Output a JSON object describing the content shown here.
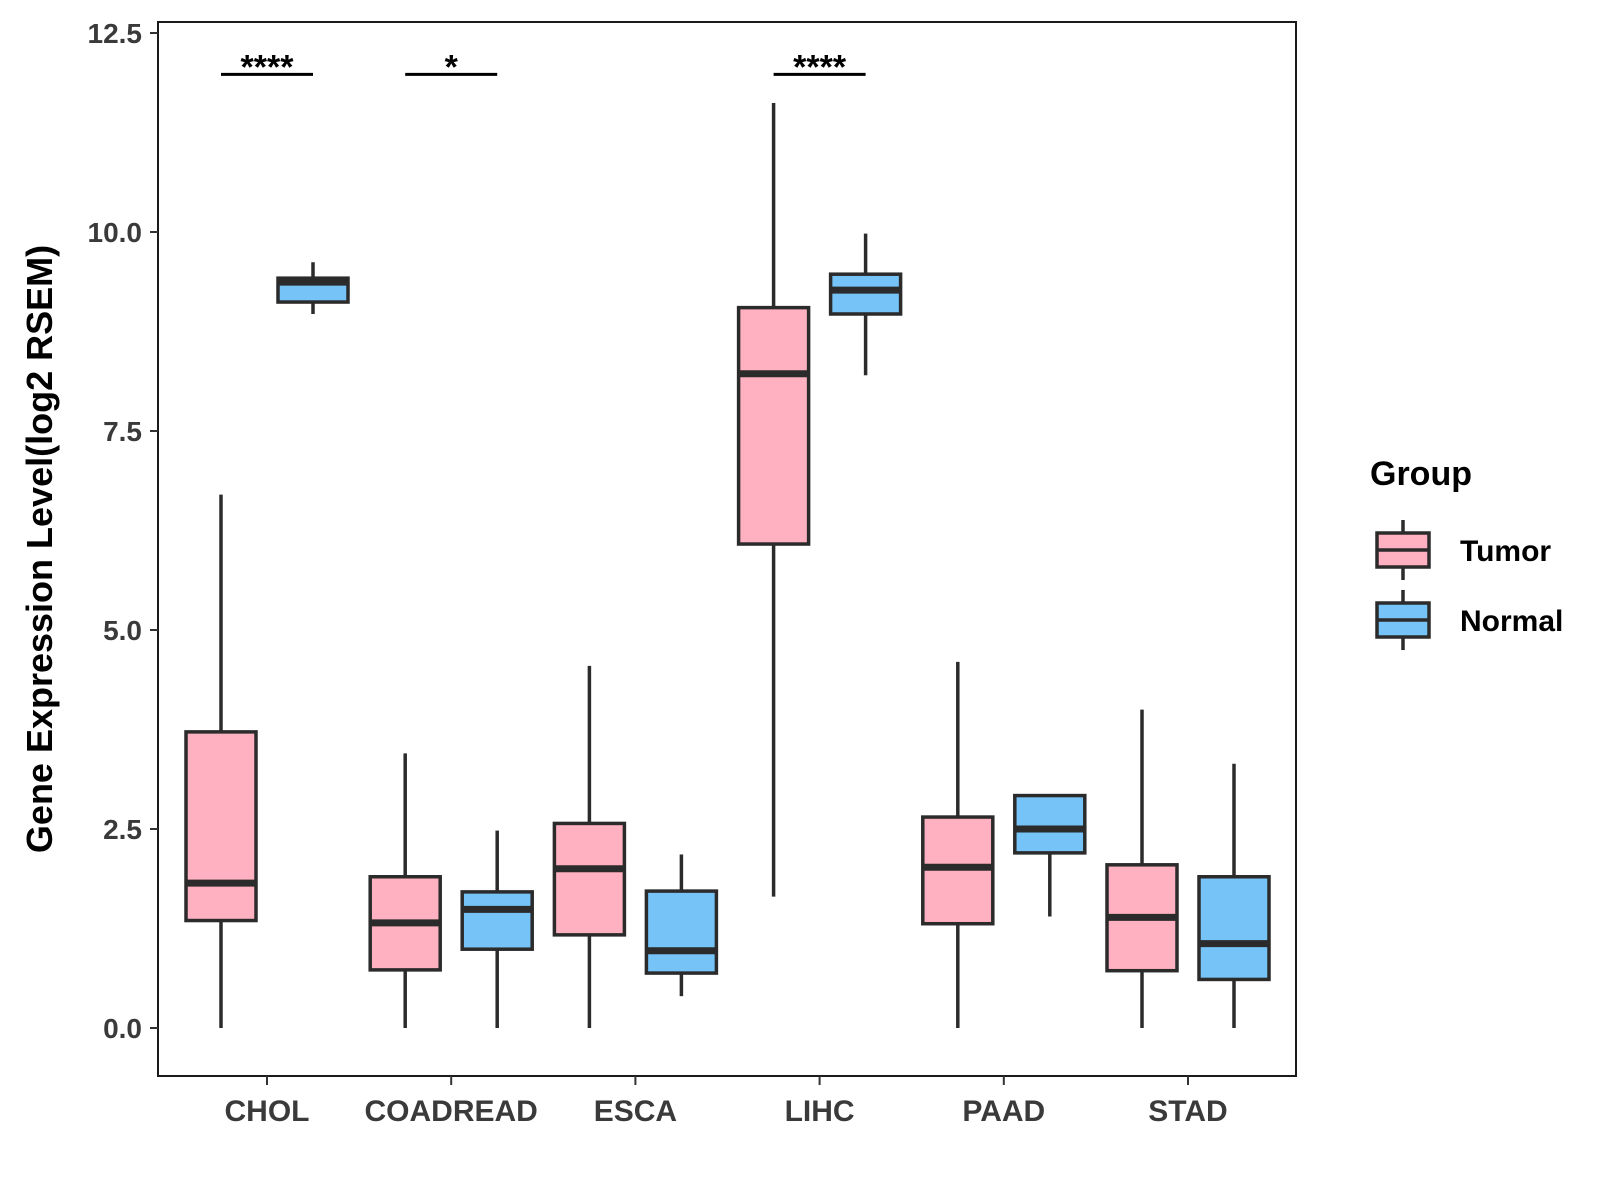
{
  "chart_data": {
    "type": "boxplot",
    "title": "",
    "xlabel": "",
    "ylabel": "Gene Expression Level(log2 RSEM)",
    "ylim": [
      -0.7,
      12.7
    ],
    "yticks": [
      0.0,
      2.5,
      5.0,
      7.5,
      10.0,
      12.5
    ],
    "ytick_labels": [
      "0.0",
      "2.5",
      "5.0",
      "7.5",
      "10.0",
      "12.5"
    ],
    "categories": [
      "CHOL",
      "COADREAD",
      "ESCA",
      "LIHC",
      "PAAD",
      "STAD"
    ],
    "legend": {
      "title": "Group",
      "position": "right",
      "entries": [
        "Tumor",
        "Normal"
      ]
    },
    "series": [
      {
        "name": "Tumor",
        "color": "#FFB0C1",
        "boxes": [
          {
            "category": "CHOL",
            "whisker_low": 0.0,
            "q1": 1.35,
            "median": 1.82,
            "q3": 3.72,
            "whisker_high": 6.7
          },
          {
            "category": "COADREAD",
            "whisker_low": 0.0,
            "q1": 0.73,
            "median": 1.32,
            "q3": 1.9,
            "whisker_high": 3.45
          },
          {
            "category": "ESCA",
            "whisker_low": 0.0,
            "q1": 1.17,
            "median": 2.0,
            "q3": 2.57,
            "whisker_high": 4.55
          },
          {
            "category": "LIHC",
            "whisker_low": 1.65,
            "q1": 6.08,
            "median": 8.22,
            "q3": 9.05,
            "whisker_high": 11.62
          },
          {
            "category": "PAAD",
            "whisker_low": 0.0,
            "q1": 1.31,
            "median": 2.02,
            "q3": 2.65,
            "whisker_high": 4.6
          },
          {
            "category": "STAD",
            "whisker_low": 0.0,
            "q1": 0.72,
            "median": 1.39,
            "q3": 2.05,
            "whisker_high": 4.0
          }
        ]
      },
      {
        "name": "Normal",
        "color": "#76C3F8",
        "boxes": [
          {
            "category": "CHOL",
            "whisker_low": 8.97,
            "q1": 9.12,
            "median": 9.37,
            "q3": 9.42,
            "whisker_high": 9.62
          },
          {
            "category": "COADREAD",
            "whisker_low": 0.0,
            "q1": 0.99,
            "median": 1.49,
            "q3": 1.71,
            "whisker_high": 2.48
          },
          {
            "category": "ESCA",
            "whisker_low": 0.4,
            "q1": 0.69,
            "median": 0.97,
            "q3": 1.72,
            "whisker_high": 2.18
          },
          {
            "category": "LIHC",
            "whisker_low": 8.2,
            "q1": 8.97,
            "median": 9.27,
            "q3": 9.47,
            "whisker_high": 9.98
          },
          {
            "category": "PAAD",
            "whisker_low": 1.4,
            "q1": 2.2,
            "median": 2.5,
            "q3": 2.92,
            "whisker_high": 2.92
          },
          {
            "category": "STAD",
            "whisker_low": 0.0,
            "q1": 0.61,
            "median": 1.06,
            "q3": 1.9,
            "whisker_high": 3.32
          }
        ]
      }
    ],
    "annotations": [
      {
        "category": "CHOL",
        "label": "****",
        "y": 11.98
      },
      {
        "category": "COADREAD",
        "label": "*",
        "y": 11.98
      },
      {
        "category": "LIHC",
        "label": "****",
        "y": 11.98
      }
    ]
  },
  "colors": {
    "box_stroke": "#2b2b2b",
    "panel_border": "#1a1a1a",
    "tick_text": "#3a3a3a"
  }
}
